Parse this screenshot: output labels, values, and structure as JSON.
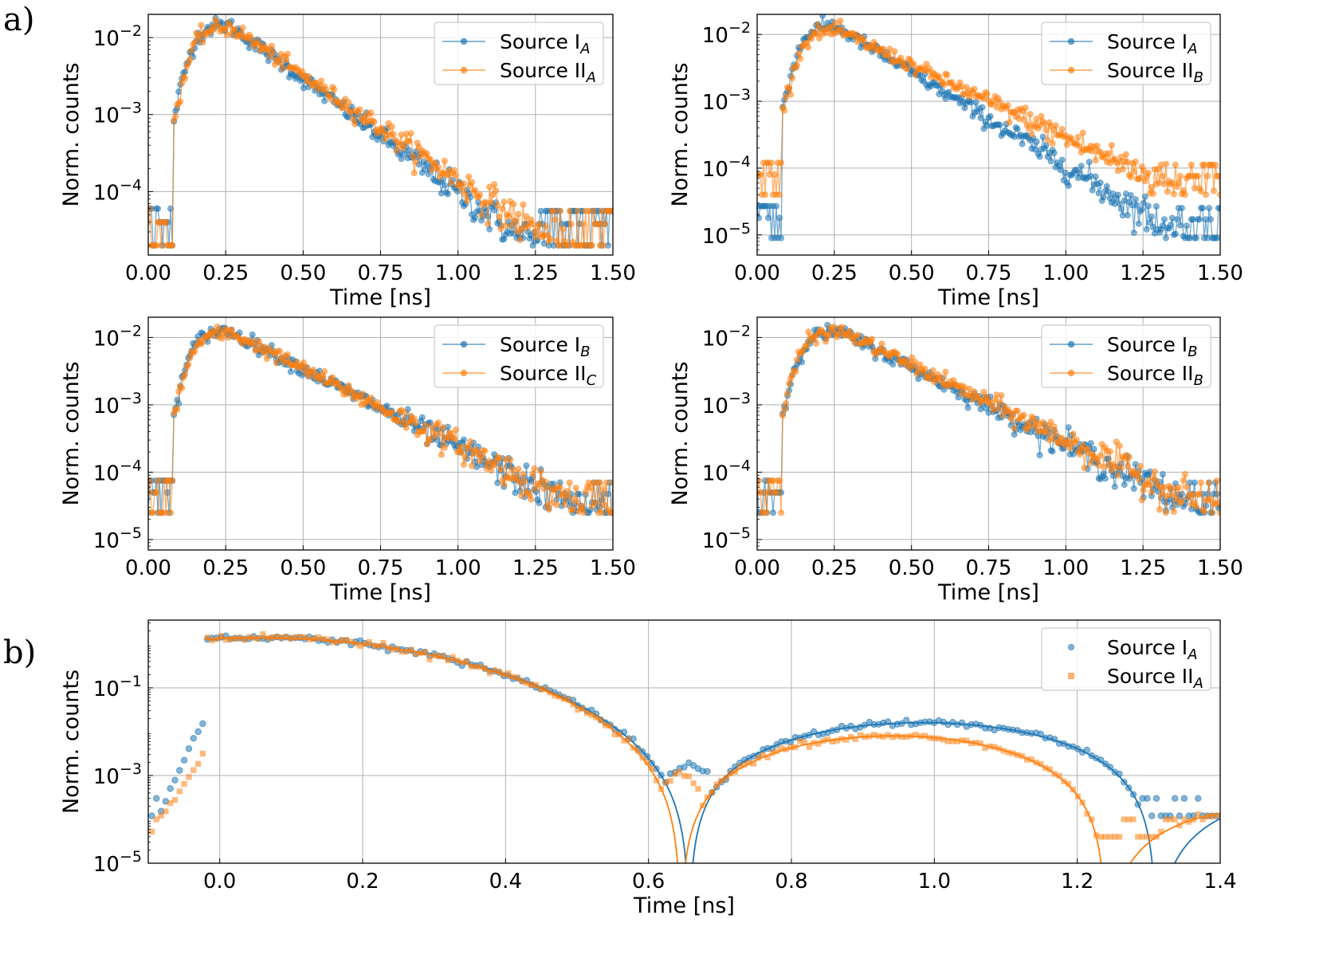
{
  "figure": {
    "panel_labels": [
      "a)",
      "b)"
    ]
  },
  "colors": {
    "blue": "#1f77b4",
    "orange": "#ff7f0e",
    "grid": "#b0b0b0"
  },
  "chart_data": [
    {
      "id": "a1",
      "type": "line",
      "scale_y": "log",
      "xlabel": "Time [ns]",
      "ylabel": "Norm. counts",
      "xlim": [
        0,
        1.5
      ],
      "ylim": [
        1.5e-05,
        0.02
      ],
      "x_ticks": [
        0,
        0.25,
        0.5,
        0.75,
        1.0,
        1.25,
        1.5
      ],
      "x_tick_labels": [
        "0.00",
        "0.25",
        "0.50",
        "0.75",
        "1.00",
        "1.25",
        "1.50"
      ],
      "y_decades": [
        -4,
        -3,
        -2
      ],
      "legend_position": "top-right",
      "legend": [
        {
          "base": "Source I",
          "sub": "A",
          "color": "blue",
          "marker": "circle-line"
        },
        {
          "base": "Source II",
          "sub": "A",
          "color": "orange",
          "marker": "circle-line"
        }
      ],
      "series": [
        {
          "name": "Source I_A",
          "color": "blue",
          "peak_x": 0.26,
          "peak_y": 0.0145,
          "decay_ns": 0.148,
          "floor": 2e-05
        },
        {
          "name": "Source II_A",
          "color": "orange",
          "peak_x": 0.27,
          "peak_y": 0.0135,
          "decay_ns": 0.16,
          "floor": 2e-05
        }
      ]
    },
    {
      "id": "a2",
      "type": "line",
      "scale_y": "log",
      "xlabel": "Time [ns]",
      "ylabel": "Norm. counts",
      "xlim": [
        0,
        1.5
      ],
      "ylim": [
        5e-06,
        0.02
      ],
      "x_ticks": [
        0,
        0.25,
        0.5,
        0.75,
        1.0,
        1.25,
        1.5
      ],
      "x_tick_labels": [
        "0.00",
        "0.25",
        "0.50",
        "0.75",
        "1.00",
        "1.25",
        "1.50"
      ],
      "y_decades": [
        -5,
        -4,
        -3,
        -2
      ],
      "legend_position": "top-right",
      "legend": [
        {
          "base": "Source I",
          "sub": "A",
          "color": "blue",
          "marker": "circle-line"
        },
        {
          "base": "Source II",
          "sub": "B",
          "color": "orange",
          "marker": "circle-line"
        }
      ],
      "series": [
        {
          "name": "Source I_A",
          "color": "blue",
          "peak_x": 0.25,
          "peak_y": 0.0135,
          "decay_ns": 0.155,
          "floor": 9e-06
        },
        {
          "name": "Source II_B",
          "color": "orange",
          "peak_x": 0.26,
          "peak_y": 0.0115,
          "decay_ns": 0.2,
          "floor": 4e-05
        }
      ]
    },
    {
      "id": "a3",
      "type": "line",
      "scale_y": "log",
      "xlabel": "Time [ns]",
      "ylabel": "Norm. counts",
      "xlim": [
        0,
        1.5
      ],
      "ylim": [
        7e-06,
        0.02
      ],
      "x_ticks": [
        0,
        0.25,
        0.5,
        0.75,
        1.0,
        1.25,
        1.5
      ],
      "x_tick_labels": [
        "0.00",
        "0.25",
        "0.50",
        "0.75",
        "1.00",
        "1.25",
        "1.50"
      ],
      "y_decades": [
        -5,
        -4,
        -3,
        -2
      ],
      "legend_position": "top-right",
      "legend": [
        {
          "base": "Source I",
          "sub": "B",
          "color": "blue",
          "marker": "circle-line"
        },
        {
          "base": "Source II",
          "sub": "C",
          "color": "orange",
          "marker": "circle-line"
        }
      ],
      "series": [
        {
          "name": "Source I_B",
          "color": "blue",
          "peak_x": 0.26,
          "peak_y": 0.0125,
          "decay_ns": 0.185,
          "floor": 2.5e-05
        },
        {
          "name": "Source II_C",
          "color": "orange",
          "peak_x": 0.27,
          "peak_y": 0.0115,
          "decay_ns": 0.19,
          "floor": 2.5e-05
        }
      ]
    },
    {
      "id": "a4",
      "type": "line",
      "scale_y": "log",
      "xlabel": "Time [ns]",
      "ylabel": "Norm. counts",
      "xlim": [
        0,
        1.5
      ],
      "ylim": [
        7e-06,
        0.02
      ],
      "x_ticks": [
        0,
        0.25,
        0.5,
        0.75,
        1.0,
        1.25,
        1.5
      ],
      "x_tick_labels": [
        "0.00",
        "0.25",
        "0.50",
        "0.75",
        "1.00",
        "1.25",
        "1.50"
      ],
      "y_decades": [
        -5,
        -4,
        -3,
        -2
      ],
      "legend_position": "top-right",
      "legend": [
        {
          "base": "Source I",
          "sub": "B",
          "color": "blue",
          "marker": "circle-line"
        },
        {
          "base": "Source II",
          "sub": "B",
          "color": "orange",
          "marker": "circle-line"
        }
      ],
      "series": [
        {
          "name": "Source I_B",
          "color": "blue",
          "peak_x": 0.27,
          "peak_y": 0.012,
          "decay_ns": 0.19,
          "floor": 2.5e-05
        },
        {
          "name": "Source II_B",
          "color": "orange",
          "peak_x": 0.28,
          "peak_y": 0.012,
          "decay_ns": 0.195,
          "floor": 2.5e-05
        }
      ]
    },
    {
      "id": "b",
      "type": "scatter",
      "scale_y": "log",
      "xlabel": "Time [ns]",
      "ylabel": "Norm. counts",
      "xlim": [
        -0.1,
        1.4
      ],
      "ylim": [
        1e-05,
        3.5
      ],
      "x_ticks": [
        0.0,
        0.2,
        0.4,
        0.6,
        0.8,
        1.0,
        1.2,
        1.4
      ],
      "x_tick_labels": [
        "0.0",
        "0.2",
        "0.4",
        "0.6",
        "0.8",
        "1.0",
        "1.2",
        "1.4"
      ],
      "y_decades": [
        -5,
        -3,
        -1
      ],
      "legend_position": "top-right",
      "legend": [
        {
          "base": "Source I",
          "sub": "A",
          "color": "blue",
          "marker": "circle"
        },
        {
          "base": "Source II",
          "sub": "A",
          "color": "orange",
          "marker": "square"
        }
      ],
      "series": [
        {
          "name": "Source I_A",
          "color": "blue",
          "marker": "circle",
          "zeros": [
            0.657,
            1.31
          ],
          "peak_x": 0.2,
          "lobe2_peak": 0.016
        },
        {
          "name": "Source II_A",
          "color": "orange",
          "marker": "square",
          "zeros": [
            0.645,
            1.24
          ],
          "peak_x": 0.2,
          "lobe2_peak": 0.008
        }
      ]
    }
  ]
}
